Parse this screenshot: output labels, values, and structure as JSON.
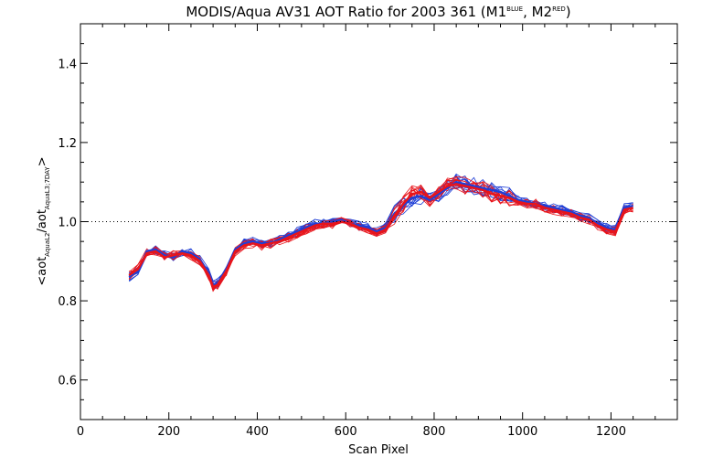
{
  "chart_data": {
    "type": "line",
    "title": "MODIS/Aqua AV31 AOT Ratio for 2003 361 (M1BLUE, M2RED)",
    "title_parts": {
      "main": "MODIS/Aqua AV31 AOT Ratio for 2003 361 (M1",
      "sup1": "BLUE",
      "mid": ", M2",
      "sup2": "RED",
      "end": ")"
    },
    "xlabel": "Scan Pixel",
    "ylabel_parts": {
      "open": "<aot",
      "sub1": "AquaL2",
      "mid": "/aot",
      "sub2": "AquaL3;7DAY",
      "close": ">"
    },
    "xlim": [
      0,
      1350
    ],
    "ylim": [
      0.5,
      1.5
    ],
    "x_ticks": [
      0,
      200,
      400,
      600,
      800,
      1000,
      1200
    ],
    "x_tick_labels": [
      "0",
      "200",
      "400",
      "600",
      "800",
      "1000",
      "1200"
    ],
    "y_ticks": [
      0.6,
      0.8,
      1.0,
      1.2,
      1.4
    ],
    "y_tick_labels": [
      "0.6",
      "0.8",
      "1.0",
      "1.2",
      "1.4"
    ],
    "reference_line": 1.0,
    "grid": false,
    "series": [
      {
        "color": "#1f3fd6",
        "x": [
          110,
          130,
          150,
          170,
          190,
          210,
          230,
          250,
          270,
          290,
          300,
          310,
          330,
          350,
          370,
          390,
          410,
          430,
          450,
          470,
          490,
          510,
          530,
          550,
          570,
          590,
          610,
          630,
          650,
          670,
          690,
          710,
          730,
          750,
          770,
          790,
          810,
          830,
          850,
          870,
          890,
          910,
          930,
          950,
          970,
          990,
          1010,
          1030,
          1050,
          1070,
          1090,
          1110,
          1130,
          1150,
          1170,
          1190,
          1210,
          1230,
          1250
        ],
        "y": [
          0.86,
          0.875,
          0.925,
          0.93,
          0.915,
          0.91,
          0.925,
          0.92,
          0.905,
          0.87,
          0.84,
          0.845,
          0.88,
          0.93,
          0.945,
          0.95,
          0.945,
          0.945,
          0.955,
          0.965,
          0.975,
          0.985,
          0.995,
          0.995,
          1.0,
          1.005,
          0.995,
          0.99,
          0.985,
          0.975,
          0.985,
          1.02,
          1.04,
          1.06,
          1.065,
          1.055,
          1.07,
          1.085,
          1.1,
          1.095,
          1.09,
          1.085,
          1.08,
          1.075,
          1.065,
          1.055,
          1.05,
          1.045,
          1.04,
          1.035,
          1.03,
          1.025,
          1.015,
          1.01,
          0.995,
          0.985,
          0.98,
          1.035,
          1.04
        ]
      },
      {
        "color": "#e8141a",
        "x": [
          110,
          130,
          150,
          170,
          190,
          210,
          230,
          250,
          270,
          290,
          300,
          310,
          330,
          350,
          370,
          390,
          410,
          430,
          450,
          470,
          490,
          510,
          530,
          550,
          570,
          590,
          610,
          630,
          650,
          670,
          690,
          710,
          730,
          750,
          770,
          790,
          810,
          830,
          850,
          870,
          890,
          910,
          930,
          950,
          970,
          990,
          1010,
          1030,
          1050,
          1070,
          1090,
          1110,
          1130,
          1150,
          1170,
          1190,
          1210,
          1230,
          1250
        ],
        "y": [
          0.865,
          0.88,
          0.92,
          0.925,
          0.91,
          0.915,
          0.92,
          0.915,
          0.9,
          0.865,
          0.835,
          0.84,
          0.875,
          0.925,
          0.94,
          0.945,
          0.94,
          0.945,
          0.95,
          0.96,
          0.97,
          0.98,
          0.99,
          0.995,
          0.995,
          1.0,
          0.995,
          0.985,
          0.98,
          0.97,
          0.98,
          1.015,
          1.045,
          1.07,
          1.075,
          1.06,
          1.075,
          1.09,
          1.095,
          1.09,
          1.085,
          1.08,
          1.07,
          1.065,
          1.06,
          1.05,
          1.045,
          1.045,
          1.035,
          1.03,
          1.025,
          1.02,
          1.01,
          1.005,
          0.99,
          0.98,
          0.975,
          1.03,
          1.035
        ]
      }
    ]
  }
}
